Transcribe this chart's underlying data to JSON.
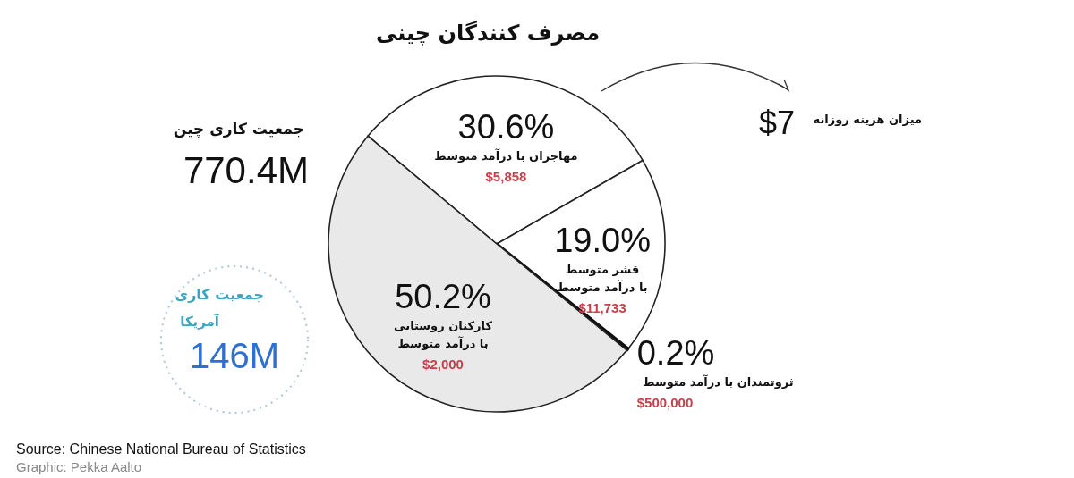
{
  "chart_data": {
    "type": "pie",
    "title": "مصرف کنندگان چینی",
    "categories": [
      "مهاجران با درآمد متوسط",
      "قشر متوسط با درآمد متوسط",
      "ثروتمندان با درآمد متوسط",
      "کارکنان روستایی با درآمد متوسط"
    ],
    "values": [
      30.6,
      19.0,
      0.2,
      50.2
    ],
    "colors": [
      "#ffffff",
      "#ffffff",
      "#111111",
      "#e9e9e9"
    ],
    "value_labels": [
      "30.6%",
      "19.0%",
      "0.2%",
      "50.2%"
    ],
    "annotations": [
      "جمعیت کاری چین",
      "770.4M",
      "جمعیت کاری",
      "آمریکا",
      "146M",
      "میزان هزینه روزانه",
      "$7",
      "Source: Chinese National Bureau of Statistics",
      "Graphic: Pekka Aalto",
      {
        "text": "$5,858",
        "x": "مهاجران با درآمد متوسط"
      },
      {
        "text": "$11,733",
        "x": "قشر متوسط با درآمد متوسط"
      },
      {
        "text": "$500,000",
        "x": "ثروتمندان با درآمد متوسط"
      },
      {
        "text": "$2,000",
        "x": "کارکنان روستایی با درآمد متوسط"
      }
    ]
  }
}
